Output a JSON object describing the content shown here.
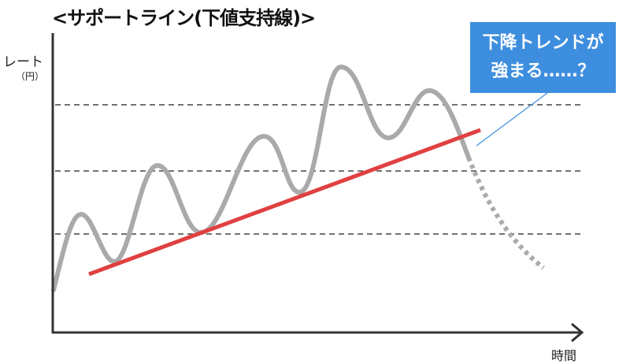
{
  "title": "<サポートライン(下値支持線)>",
  "y_axis": {
    "label": "レート",
    "unit": "（円）"
  },
  "x_axis": {
    "label": "時間"
  },
  "callout": {
    "line1": "下降トレンドが",
    "line2": "強まる……？"
  },
  "colors": {
    "price_line": "#aaaaaa",
    "support_line": "#e04040",
    "callout_bg": "#3d8ede",
    "guide_lines": "#444444"
  }
}
